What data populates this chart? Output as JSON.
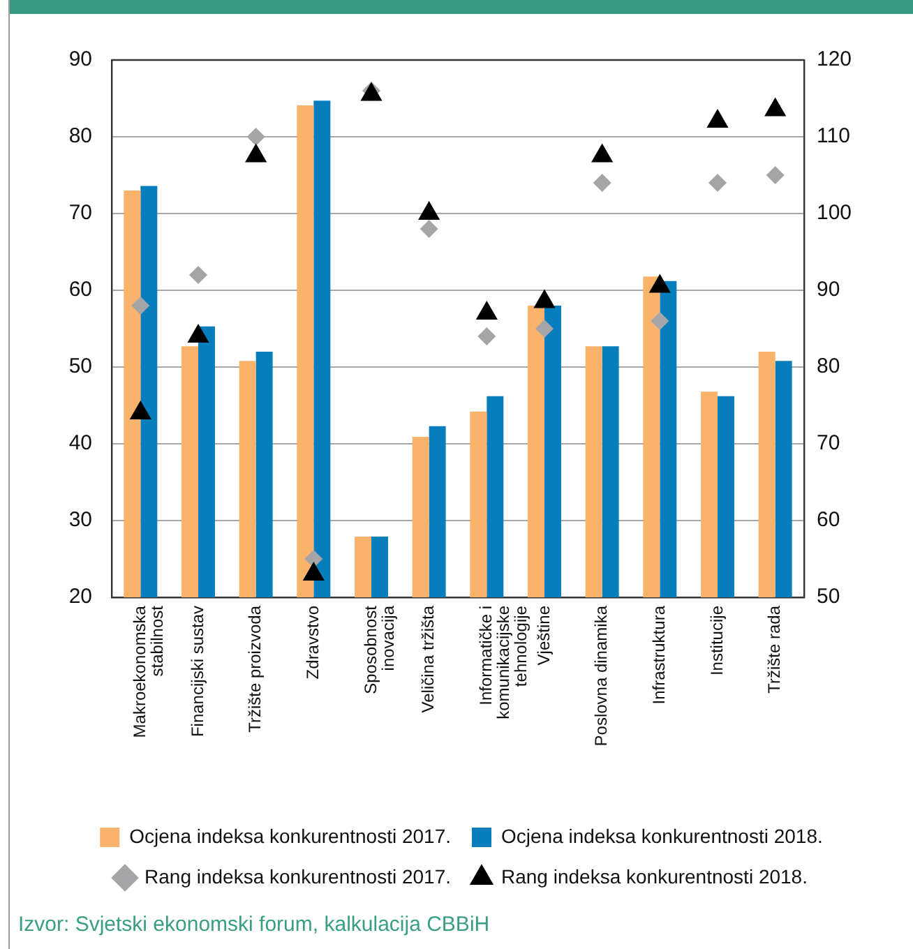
{
  "chart_data": {
    "type": "bar",
    "categories": [
      "Makroekonomska stabilnost",
      "Financijski sustav",
      "Tržište proizvoda",
      "Zdravstvo",
      "Sposobnost inovacija",
      "Veličina tržišta",
      "Informatičke i komunikacijske tehnologije",
      "Vještine",
      "Poslovna dinamika",
      "Infrastruktura",
      "Institucije",
      "Tržište rada"
    ],
    "series": [
      {
        "name": "Ocjena indeksa konkurentnosti 2017.",
        "color": "#f9b36b",
        "values": [
          73,
          52.7,
          50.8,
          84.1,
          27.9,
          40.9,
          44.2,
          58,
          52.7,
          61.8,
          46.8,
          52
        ]
      },
      {
        "name": "Ocjena indeksa konkurentnosti 2018.",
        "color": "#087dbb",
        "values": [
          73.6,
          55.3,
          52,
          84.7,
          27.9,
          42.3,
          46.2,
          58,
          52.7,
          61.2,
          46.2,
          50.8
        ]
      },
      {
        "name": "Rang indeksa konkurentnosti 2017.",
        "type": "scatter",
        "axis": "y2",
        "marker": "diamond",
        "color": "#a5a5a8",
        "x": [
          "Makroekonomska stabilnost",
          "Financijski sustav",
          "Tržište proizvoda",
          "Zdravstvo",
          "Sposobnost inovacija",
          "Veličina tržišta",
          "Informatičke i komunikacijske tehnologije",
          "Vještine",
          "Poslovna dinamika",
          "Infrastruktura",
          "Institucije",
          "Tržište rada"
        ],
        "values": [
          88,
          92,
          110,
          55,
          116,
          98,
          84,
          85,
          104,
          86,
          104,
          105
        ]
      },
      {
        "name": "Rang indeksa konkurentnosti 2018.",
        "type": "scatter",
        "axis": "y2",
        "marker": "triangle",
        "color": "#000000",
        "x": [
          "Makroekonomska stabilnost",
          "Financijski sustav",
          "Tržište proizvoda",
          "Zdravstvo",
          "Sposobnost inovacija",
          "Veličina tržišta",
          "Informatičke i komunikacijske tehnologije",
          "Vještine",
          "Poslovna dinamika",
          "Infrastruktura",
          "Institucije",
          "Tržište rada"
        ],
        "values": [
          74,
          84,
          107.5,
          53,
          115.5,
          100,
          87,
          88.5,
          107.5,
          90.5,
          112,
          113.5
        ]
      }
    ],
    "ylim": [
      20,
      90
    ],
    "yticks": [
      20,
      30,
      40,
      50,
      60,
      70,
      80,
      90
    ],
    "y2lim": [
      50,
      120
    ],
    "y2ticks": [
      50,
      60,
      70,
      80,
      90,
      100,
      110,
      120
    ],
    "grid": "y",
    "legend": "bottom",
    "annotations": [
      "Izvor: Svjetski ekonomski forum, kalkulacija CBBiH"
    ]
  }
}
